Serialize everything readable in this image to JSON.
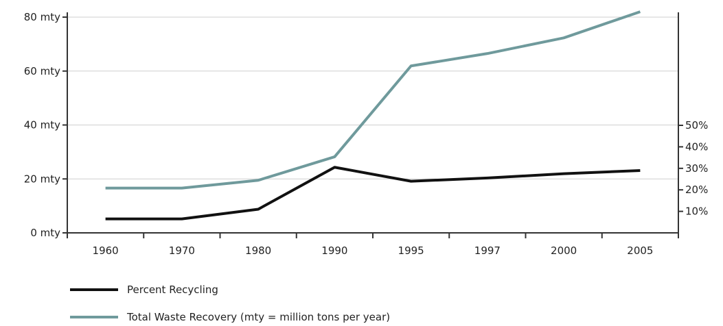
{
  "chart_data": {
    "type": "line",
    "categories": [
      "1960",
      "1970",
      "1980",
      "1990",
      "1995",
      "1997",
      "2000",
      "2005"
    ],
    "y_left": {
      "ticks": [
        0,
        20,
        40,
        60,
        80
      ],
      "tick_labels": [
        "0 mty",
        "20 mty",
        "40 mty",
        "60 mty",
        "80 mty"
      ],
      "range": [
        0,
        80
      ]
    },
    "y_right": {
      "ticks": [
        10,
        20,
        30,
        40,
        50
      ],
      "tick_labels": [
        "10%",
        "20%",
        "30%",
        "40%",
        "50%"
      ],
      "range": [
        0,
        50
      ]
    },
    "series": [
      {
        "name": "Total Waste Recovery (mty = million tons per year)",
        "axis": "left",
        "color": "#6f9a9c",
        "values": [
          16.6,
          16.6,
          19.5,
          28.2,
          61.9,
          66.5,
          72.3,
          82.0
        ]
      },
      {
        "name": "Percent Recycling",
        "axis": "right",
        "color": "#111111",
        "values": [
          6.5,
          6.5,
          11.0,
          30.5,
          24.0,
          25.5,
          27.5,
          29.0
        ]
      }
    ],
    "grid": "horizontal",
    "legend": "bottom-left"
  }
}
